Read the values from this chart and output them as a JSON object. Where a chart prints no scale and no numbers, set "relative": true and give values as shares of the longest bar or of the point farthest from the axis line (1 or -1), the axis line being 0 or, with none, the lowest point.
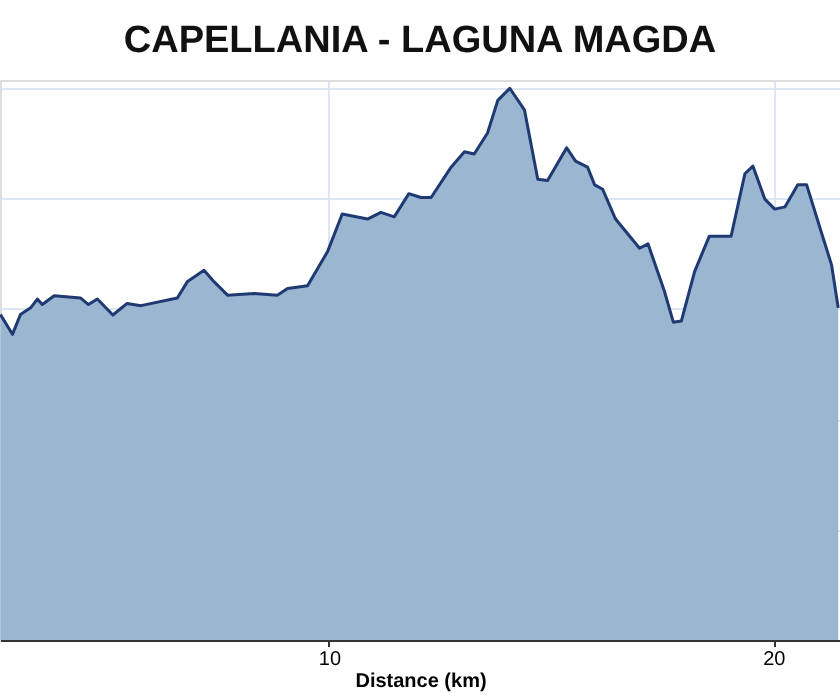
{
  "chart_data": {
    "type": "area",
    "title": "CAPELLANIA - LAGUNA MAGDA",
    "xlabel": "Distance (km)",
    "relative": true,
    "xlim": [
      2.6,
      21.5
    ],
    "xticks": [
      10,
      20
    ],
    "grid": true,
    "series": [
      {
        "color": "#9bb6d0",
        "x": [
          2.61,
          2.88,
          3.06,
          3.29,
          3.44,
          3.55,
          3.82,
          4.41,
          4.59,
          4.79,
          5.14,
          5.46,
          5.77,
          6.59,
          6.82,
          7.19,
          7.42,
          7.72,
          8.32,
          8.84,
          9.07,
          9.52,
          9.97,
          10.3,
          10.87,
          11.17,
          11.47,
          11.8,
          12.07,
          12.3,
          12.75,
          13.05,
          13.27,
          13.57,
          13.8,
          14.07,
          14.4,
          14.7,
          14.92,
          15.35,
          15.55,
          15.82,
          15.98,
          16.16,
          16.45,
          16.99,
          17.18,
          17.55,
          17.75,
          17.93,
          18.23,
          18.56,
          19.05,
          19.36,
          19.54,
          19.81,
          20.03,
          20.26,
          20.55,
          20.75,
          21.08,
          21.31,
          21.46
        ],
        "values": [
          0.59,
          0.554,
          0.59,
          0.602,
          0.618,
          0.608,
          0.624,
          0.62,
          0.608,
          0.618,
          0.589,
          0.61,
          0.606,
          0.62,
          0.65,
          0.67,
          0.649,
          0.625,
          0.628,
          0.625,
          0.637,
          0.642,
          0.704,
          0.772,
          0.763,
          0.775,
          0.767,
          0.809,
          0.802,
          0.802,
          0.857,
          0.885,
          0.881,
          0.919,
          0.978,
          1.0,
          0.961,
          0.835,
          0.833,
          0.892,
          0.868,
          0.857,
          0.825,
          0.817,
          0.763,
          0.71,
          0.718,
          0.632,
          0.576,
          0.578,
          0.668,
          0.732,
          0.732,
          0.845,
          0.859,
          0.799,
          0.781,
          0.785,
          0.825,
          0.825,
          0.739,
          0.68,
          0.602
        ]
      }
    ]
  }
}
